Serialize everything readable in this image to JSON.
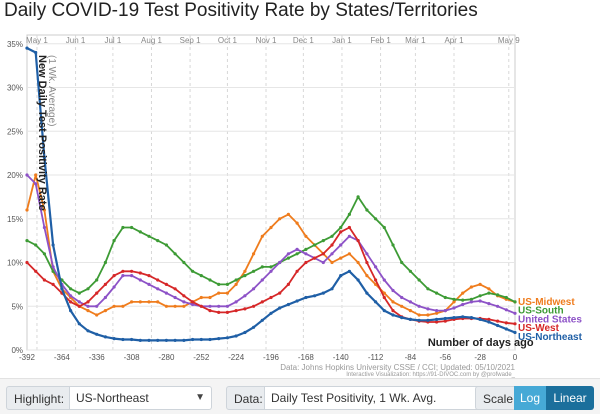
{
  "title": "Daily COVID-19 Test Positivity Rate by States/Territories",
  "colors": {
    "US-Midwest": "#ef7c1d",
    "US-South": "#3d9b35",
    "United States": "#8d52c7",
    "US-West": "#d62728",
    "US-Northeast": "#1f5fa6",
    "accent": "#1b8fc4"
  },
  "chart_data": {
    "type": "line",
    "title": "Daily COVID-19 Test Positivity Rate by States/Territories",
    "ylabel": "New Daily Test Positivity Rate",
    "ylabel2": "(1 Wk. Average)",
    "xlabel": "Number of days ago",
    "xlim": [
      -392,
      0
    ],
    "ylim": [
      0,
      0.36
    ],
    "x_ticks": [
      -392,
      -364,
      -336,
      -308,
      -280,
      -252,
      -224,
      -196,
      -168,
      -140,
      -112,
      -84,
      -56,
      -28,
      0
    ],
    "y_ticks": [
      {
        "v": 0,
        "label": "0%"
      },
      {
        "v": 0.05,
        "label": "5%"
      },
      {
        "v": 0.1,
        "label": "10%"
      },
      {
        "v": 0.15,
        "label": "15%"
      },
      {
        "v": 0.2,
        "label": "20%"
      },
      {
        "v": 0.25,
        "label": "25%"
      },
      {
        "v": 0.3,
        "label": "30%"
      },
      {
        "v": 0.35,
        "label": "35%"
      }
    ],
    "month_labels": [
      {
        "x": -384,
        "label": "May 1"
      },
      {
        "x": -353,
        "label": "Jun 1"
      },
      {
        "x": -323,
        "label": "Jul 1"
      },
      {
        "x": -292,
        "label": "Aug 1"
      },
      {
        "x": -261,
        "label": "Sep 1"
      },
      {
        "x": -231,
        "label": "Oct 1"
      },
      {
        "x": -200,
        "label": "Nov 1"
      },
      {
        "x": -170,
        "label": "Dec 1"
      },
      {
        "x": -139,
        "label": "Jan 1"
      },
      {
        "x": -108,
        "label": "Feb 1"
      },
      {
        "x": -80,
        "label": "Mar 1"
      },
      {
        "x": -49,
        "label": "Apr 1"
      },
      {
        "x": -5,
        "label": "May 9"
      }
    ],
    "grid": true,
    "source": "Data: Johns Hopkins University CSSE / CCI; Updated: 05/10/2021",
    "credit": "Interactive Visualization: https://91-DIVOC.com by @profwade_",
    "series": [
      {
        "name": "US-Midwest",
        "x": [
          -392,
          -385,
          -378,
          -371,
          -364,
          -357,
          -350,
          -343,
          -336,
          -329,
          -322,
          -315,
          -308,
          -301,
          -294,
          -287,
          -280,
          -273,
          -266,
          -259,
          -252,
          -245,
          -238,
          -231,
          -224,
          -217,
          -210,
          -203,
          -196,
          -189,
          -182,
          -175,
          -168,
          -161,
          -154,
          -147,
          -140,
          -133,
          -126,
          -119,
          -112,
          -105,
          -98,
          -91,
          -84,
          -77,
          -70,
          -63,
          -56,
          -49,
          -42,
          -35,
          -28,
          -21,
          -14,
          -7,
          0
        ],
        "y": [
          0.16,
          0.2,
          0.16,
          0.09,
          0.07,
          0.06,
          0.05,
          0.045,
          0.04,
          0.045,
          0.05,
          0.05,
          0.055,
          0.055,
          0.055,
          0.055,
          0.05,
          0.05,
          0.05,
          0.055,
          0.06,
          0.06,
          0.065,
          0.065,
          0.075,
          0.09,
          0.11,
          0.13,
          0.14,
          0.15,
          0.155,
          0.145,
          0.13,
          0.12,
          0.11,
          0.1,
          0.105,
          0.11,
          0.1,
          0.085,
          0.075,
          0.065,
          0.055,
          0.05,
          0.045,
          0.04,
          0.04,
          0.042,
          0.045,
          0.055,
          0.065,
          0.072,
          0.075,
          0.07,
          0.062,
          0.058,
          0.055
        ]
      },
      {
        "name": "US-South",
        "x": [
          -392,
          -385,
          -378,
          -371,
          -364,
          -357,
          -350,
          -343,
          -336,
          -329,
          -322,
          -315,
          -308,
          -301,
          -294,
          -287,
          -280,
          -273,
          -266,
          -259,
          -252,
          -245,
          -238,
          -231,
          -224,
          -217,
          -210,
          -203,
          -196,
          -189,
          -182,
          -175,
          -168,
          -161,
          -154,
          -147,
          -140,
          -133,
          -126,
          -119,
          -112,
          -105,
          -98,
          -91,
          -84,
          -77,
          -70,
          -63,
          -56,
          -49,
          -42,
          -35,
          -28,
          -21,
          -14,
          -7,
          0
        ],
        "y": [
          0.125,
          0.12,
          0.11,
          0.09,
          0.08,
          0.07,
          0.065,
          0.07,
          0.08,
          0.1,
          0.125,
          0.14,
          0.14,
          0.135,
          0.13,
          0.125,
          0.12,
          0.11,
          0.1,
          0.09,
          0.085,
          0.08,
          0.075,
          0.075,
          0.08,
          0.085,
          0.09,
          0.095,
          0.095,
          0.1,
          0.105,
          0.11,
          0.115,
          0.12,
          0.125,
          0.13,
          0.14,
          0.155,
          0.175,
          0.16,
          0.15,
          0.14,
          0.12,
          0.1,
          0.09,
          0.08,
          0.07,
          0.065,
          0.06,
          0.058,
          0.057,
          0.058,
          0.062,
          0.065,
          0.063,
          0.06,
          0.055
        ]
      },
      {
        "name": "United States",
        "x": [
          -392,
          -385,
          -378,
          -371,
          -364,
          -357,
          -350,
          -343,
          -336,
          -329,
          -322,
          -315,
          -308,
          -301,
          -294,
          -287,
          -280,
          -273,
          -266,
          -259,
          -252,
          -245,
          -238,
          -231,
          -224,
          -217,
          -210,
          -203,
          -196,
          -189,
          -182,
          -175,
          -168,
          -161,
          -154,
          -147,
          -140,
          -133,
          -126,
          -119,
          -112,
          -105,
          -98,
          -91,
          -84,
          -77,
          -70,
          -63,
          -56,
          -49,
          -42,
          -35,
          -28,
          -21,
          -14,
          -7,
          0
        ],
        "y": [
          0.2,
          0.19,
          0.14,
          0.095,
          0.075,
          0.062,
          0.055,
          0.05,
          0.05,
          0.06,
          0.072,
          0.085,
          0.085,
          0.08,
          0.075,
          0.07,
          0.065,
          0.06,
          0.055,
          0.052,
          0.05,
          0.05,
          0.05,
          0.05,
          0.055,
          0.062,
          0.07,
          0.08,
          0.09,
          0.1,
          0.11,
          0.115,
          0.11,
          0.105,
          0.1,
          0.11,
          0.12,
          0.13,
          0.125,
          0.11,
          0.095,
          0.08,
          0.068,
          0.06,
          0.055,
          0.05,
          0.047,
          0.045,
          0.045,
          0.048,
          0.052,
          0.055,
          0.056,
          0.053,
          0.05,
          0.046,
          0.042
        ]
      },
      {
        "name": "US-West",
        "x": [
          -392,
          -385,
          -378,
          -371,
          -364,
          -357,
          -350,
          -343,
          -336,
          -329,
          -322,
          -315,
          -308,
          -301,
          -294,
          -287,
          -280,
          -273,
          -266,
          -259,
          -252,
          -245,
          -238,
          -231,
          -224,
          -217,
          -210,
          -203,
          -196,
          -189,
          -182,
          -175,
          -168,
          -161,
          -154,
          -147,
          -140,
          -133,
          -126,
          -119,
          -112,
          -105,
          -98,
          -91,
          -84,
          -77,
          -70,
          -63,
          -56,
          -49,
          -42,
          -35,
          -28,
          -21,
          -14,
          -7,
          0
        ],
        "y": [
          0.1,
          0.09,
          0.08,
          0.075,
          0.065,
          0.055,
          0.05,
          0.055,
          0.065,
          0.075,
          0.085,
          0.09,
          0.09,
          0.088,
          0.085,
          0.08,
          0.075,
          0.07,
          0.062,
          0.055,
          0.05,
          0.045,
          0.043,
          0.043,
          0.045,
          0.047,
          0.05,
          0.055,
          0.06,
          0.065,
          0.075,
          0.09,
          0.1,
          0.105,
          0.11,
          0.12,
          0.135,
          0.14,
          0.125,
          0.1,
          0.08,
          0.06,
          0.045,
          0.038,
          0.035,
          0.033,
          0.032,
          0.032,
          0.033,
          0.035,
          0.036,
          0.036,
          0.036,
          0.035,
          0.033,
          0.031,
          0.03
        ]
      },
      {
        "name": "US-Northeast",
        "x": [
          -392,
          -385,
          -378,
          -371,
          -364,
          -357,
          -350,
          -343,
          -336,
          -329,
          -322,
          -315,
          -308,
          -301,
          -294,
          -287,
          -280,
          -273,
          -266,
          -259,
          -252,
          -245,
          -238,
          -231,
          -224,
          -217,
          -210,
          -203,
          -196,
          -189,
          -182,
          -175,
          -168,
          -161,
          -154,
          -147,
          -140,
          -133,
          -126,
          -119,
          -112,
          -105,
          -98,
          -91,
          -84,
          -77,
          -70,
          -63,
          -56,
          -49,
          -42,
          -35,
          -28,
          -21,
          -14,
          -7,
          0
        ],
        "y": [
          0.345,
          0.34,
          0.22,
          0.12,
          0.07,
          0.045,
          0.03,
          0.022,
          0.018,
          0.015,
          0.013,
          0.012,
          0.012,
          0.011,
          0.011,
          0.011,
          0.011,
          0.011,
          0.011,
          0.012,
          0.012,
          0.012,
          0.013,
          0.014,
          0.016,
          0.02,
          0.026,
          0.034,
          0.042,
          0.048,
          0.052,
          0.056,
          0.06,
          0.062,
          0.065,
          0.07,
          0.085,
          0.09,
          0.08,
          0.065,
          0.055,
          0.045,
          0.04,
          0.037,
          0.035,
          0.034,
          0.034,
          0.035,
          0.036,
          0.037,
          0.038,
          0.037,
          0.035,
          0.032,
          0.028,
          0.024,
          0.02
        ]
      }
    ],
    "end_labels": [
      {
        "name": "US-Midwest",
        "y": 0.055
      },
      {
        "name": "US-South",
        "y": 0.045
      },
      {
        "name": "United States",
        "y": 0.035
      },
      {
        "name": "US-West",
        "y": 0.025
      },
      {
        "name": "US-Northeast",
        "y": 0.015
      }
    ]
  },
  "controls": {
    "highlight_label": "Highlight:",
    "highlight_value": "US-Northeast",
    "data_label": "Data:",
    "data_value": "Daily Test Positivity, 1 Wk. Avg.",
    "scale_label": "Scale:",
    "scale_log": "Log",
    "scale_linear": "Linear"
  }
}
